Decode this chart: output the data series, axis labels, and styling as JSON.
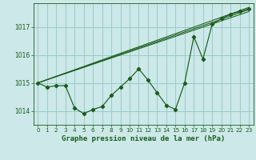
{
  "background_color": "#cce8e8",
  "grid_color": "#99cccc",
  "line_color": "#1a5c1a",
  "title": "Graphe pression niveau de la mer (hPa)",
  "xlim": [
    -0.5,
    23.5
  ],
  "ylim": [
    1013.5,
    1017.85
  ],
  "yticks": [
    1014,
    1015,
    1016,
    1017
  ],
  "xticks": [
    0,
    1,
    2,
    3,
    4,
    5,
    6,
    7,
    8,
    9,
    10,
    11,
    12,
    13,
    14,
    15,
    16,
    17,
    18,
    19,
    20,
    21,
    22,
    23
  ],
  "series1_x": [
    0,
    1,
    2,
    3,
    4,
    5,
    6,
    7,
    8,
    9,
    10,
    11,
    12,
    13,
    14,
    15,
    16,
    17,
    18,
    19,
    20,
    21,
    22,
    23
  ],
  "series1_y": [
    1015.0,
    1014.85,
    1014.9,
    1014.9,
    1014.1,
    1013.9,
    1014.05,
    1014.15,
    1014.55,
    1014.85,
    1015.15,
    1015.5,
    1015.1,
    1014.65,
    1014.2,
    1014.05,
    1015.0,
    1016.65,
    1015.85,
    1017.1,
    1017.3,
    1017.45,
    1017.55,
    1017.65
  ],
  "trend1_x": [
    0,
    23
  ],
  "trend1_y": [
    1015.0,
    1017.55
  ],
  "trend2_x": [
    0,
    23
  ],
  "trend2_y": [
    1015.0,
    1017.62
  ],
  "trend3_x": [
    0,
    23
  ],
  "trend3_y": [
    1015.0,
    1017.7
  ],
  "ylabel_fontsize": 5.5,
  "xlabel_fontsize": 6.5,
  "tick_fontsize": 5.2
}
